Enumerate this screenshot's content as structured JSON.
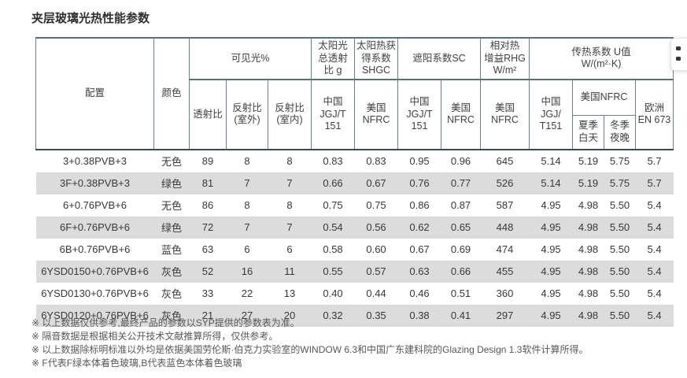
{
  "title": "夹层玻璃光热性能参数",
  "table": {
    "header": {
      "config": "配置",
      "color": "颜色",
      "visible_light_group": "可见光%",
      "solar_g_group": "太阳光\n总透射\n比 g",
      "shgc_group": "太阳热获\n得系数\nSHGC",
      "sc_group": "遮阳系数SC",
      "rhg_group": "相对热\n增益RHG\nW/m²",
      "u_value_group": "传热系数 U值\nW/(m²·K)",
      "transmittance": "透射比",
      "reflectance_outdoor": "反射比\n(室外)",
      "reflectance_indoor": "反射比\n(室内)",
      "china_jgjt151": "中国\nJGJ/T\n151",
      "usa_nfrc": "美国\nNFRC",
      "china_jgjt151_u": "中国\nJGJ/\nT151",
      "usa_nfrc_u": "美国NFRC",
      "summer_day": "夏季\n白天",
      "winter_night": "冬季\n夜晚",
      "europe_en673": "欧洲\nEN 673"
    },
    "rows": [
      {
        "config": "3+0.38PVB+3",
        "color": "无色",
        "values": [
          "89",
          "8",
          "8",
          "0.83",
          "0.83",
          "0.95",
          "0.96",
          "645",
          "5.14",
          "5.19",
          "5.75",
          "5.7"
        ]
      },
      {
        "config": "3F+0.38PVB+3",
        "color": "绿色",
        "values": [
          "81",
          "7",
          "7",
          "0.66",
          "0.67",
          "0.76",
          "0.77",
          "526",
          "5.14",
          "5.19",
          "5.75",
          "5.7"
        ]
      },
      {
        "config": "6+0.76PVB+6",
        "color": "无色",
        "values": [
          "86",
          "8",
          "8",
          "0.75",
          "0.75",
          "0.86",
          "0.87",
          "587",
          "4.95",
          "4.98",
          "5.50",
          "5.4"
        ]
      },
      {
        "config": "6F+0.76PVB+6",
        "color": "绿色",
        "values": [
          "72",
          "7",
          "7",
          "0.54",
          "0.56",
          "0.62",
          "0.65",
          "448",
          "4.95",
          "4.98",
          "5.50",
          "5.4"
        ]
      },
      {
        "config": "6B+0.76PVB+6",
        "color": "蓝色",
        "values": [
          "63",
          "6",
          "6",
          "0.58",
          "0.60",
          "0.67",
          "0.69",
          "474",
          "4.95",
          "4.98",
          "5.50",
          "5.4"
        ]
      },
      {
        "config": "6YSD0150+0.76PVB+6",
        "color": "灰色",
        "values": [
          "52",
          "16",
          "11",
          "0.55",
          "0.57",
          "0.63",
          "0.66",
          "455",
          "4.95",
          "4.98",
          "5.50",
          "5.4"
        ]
      },
      {
        "config": "6YSD0130+0.76PVB+6",
        "color": "灰色",
        "values": [
          "33",
          "22",
          "13",
          "0.40",
          "0.44",
          "0.46",
          "0.51",
          "360",
          "4.95",
          "4.98",
          "5.50",
          "5.4"
        ]
      },
      {
        "config": "6YSD0120+0.76PVB+6",
        "color": "灰色",
        "values": [
          "21",
          "27",
          "20",
          "0.32",
          "0.35",
          "0.38",
          "0.41",
          "297",
          "4.95",
          "4.98",
          "5.50",
          "5.4"
        ]
      }
    ]
  },
  "footnotes": [
    "※ 以上数据仅供参考,最终产品的参数以SYP提供的参数表为准。",
    "※ 隔音数据是根据相关公开技术文献推算所得，仅供参考。",
    "※ 以上数据除标明标准以外均是依据美国劳伦斯·伯克力实验室的WINDOW 6.3和中国广东建科院的Glazing Design 1.3软件计算所得。",
    "※ F代表F绿本体着色玻璃,B代表蓝色本体着色玻璃"
  ],
  "colors": {
    "row_alt_background": "#dcdcdc",
    "border_light": "#6f7f89",
    "border_thick": "#5f707a",
    "border_dark": "#3f4b53",
    "text_primary": "#383838",
    "footnote_text": "#575757"
  }
}
